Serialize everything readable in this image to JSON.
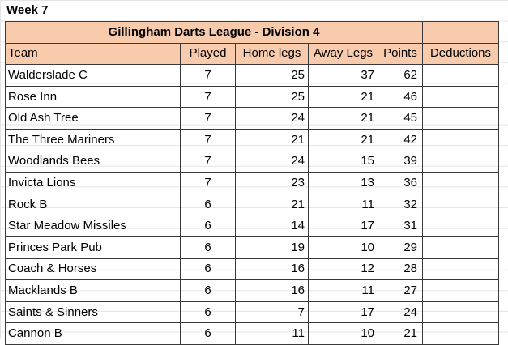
{
  "heading": "Week 7",
  "table": {
    "title": "Gillingham Darts League - Division 4",
    "columns": [
      "Team",
      "Played",
      "Home legs",
      "Away Legs",
      "Points",
      "Deductions"
    ],
    "rows": [
      {
        "team": "Walderslade C",
        "played": "7",
        "home": "25",
        "away": "37",
        "points": "62",
        "deductions": ""
      },
      {
        "team": "Rose Inn",
        "played": "7",
        "home": "25",
        "away": "21",
        "points": "46",
        "deductions": ""
      },
      {
        "team": "Old Ash Tree",
        "played": "7",
        "home": "24",
        "away": "21",
        "points": "45",
        "deductions": ""
      },
      {
        "team": "The Three Mariners",
        "played": "7",
        "home": "21",
        "away": "21",
        "points": "42",
        "deductions": ""
      },
      {
        "team": "Woodlands Bees",
        "played": "7",
        "home": "24",
        "away": "15",
        "points": "39",
        "deductions": ""
      },
      {
        "team": "Invicta Lions",
        "played": "7",
        "home": "23",
        "away": "13",
        "points": "36",
        "deductions": ""
      },
      {
        "team": "Rock B",
        "played": "6",
        "home": "21",
        "away": "11",
        "points": "32",
        "deductions": ""
      },
      {
        "team": "Star Meadow Missiles",
        "played": "6",
        "home": "14",
        "away": "17",
        "points": "31",
        "deductions": ""
      },
      {
        "team": "Princes Park Pub",
        "played": "6",
        "home": "19",
        "away": "10",
        "points": "29",
        "deductions": ""
      },
      {
        "team": "Coach & Horses",
        "played": "6",
        "home": "16",
        "away": "12",
        "points": "28",
        "deductions": ""
      },
      {
        "team": "Macklands B",
        "played": "6",
        "home": "16",
        "away": "11",
        "points": "27",
        "deductions": ""
      },
      {
        "team": "Saints & Sinners",
        "played": "6",
        "home": "7",
        "away": "17",
        "points": "24",
        "deductions": ""
      },
      {
        "team": "Cannon B",
        "played": "6",
        "home": "11",
        "away": "10",
        "points": "21",
        "deductions": ""
      }
    ]
  }
}
